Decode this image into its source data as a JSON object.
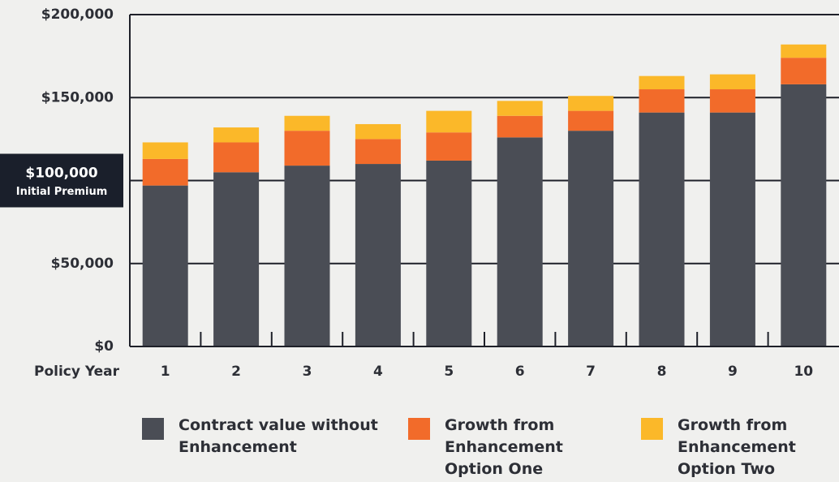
{
  "chart_data": {
    "type": "stacked_bar",
    "x_label": "Policy Year",
    "categories": [
      "1",
      "2",
      "3",
      "4",
      "5",
      "6",
      "7",
      "8",
      "9",
      "10"
    ],
    "series": [
      {
        "name": "Contract value without Enhancement",
        "color": "#4a4d55",
        "values": [
          97000,
          105000,
          109000,
          110000,
          112000,
          126000,
          130000,
          141000,
          141000,
          158000
        ]
      },
      {
        "name": "Growth from Enhancement Option One",
        "color": "#f26b2a",
        "values": [
          16000,
          18000,
          21000,
          15000,
          17000,
          13000,
          12000,
          14000,
          14000,
          16000
        ]
      },
      {
        "name": "Growth from Enhancement Option Two",
        "color": "#fbb829",
        "values": [
          10000,
          9000,
          9000,
          9000,
          13000,
          9000,
          9000,
          8000,
          9000,
          8000
        ]
      }
    ],
    "ylim": [
      0,
      200000
    ],
    "yticks": [
      {
        "value": 0,
        "label": "$0"
      },
      {
        "value": 50000,
        "label": "$50,000"
      },
      {
        "value": 100000,
        "label": "$100,000",
        "note": "Initial Premium"
      },
      {
        "value": 150000,
        "label": "$150,000"
      },
      {
        "value": 200000,
        "label": "$200,000"
      }
    ],
    "grid": true
  }
}
